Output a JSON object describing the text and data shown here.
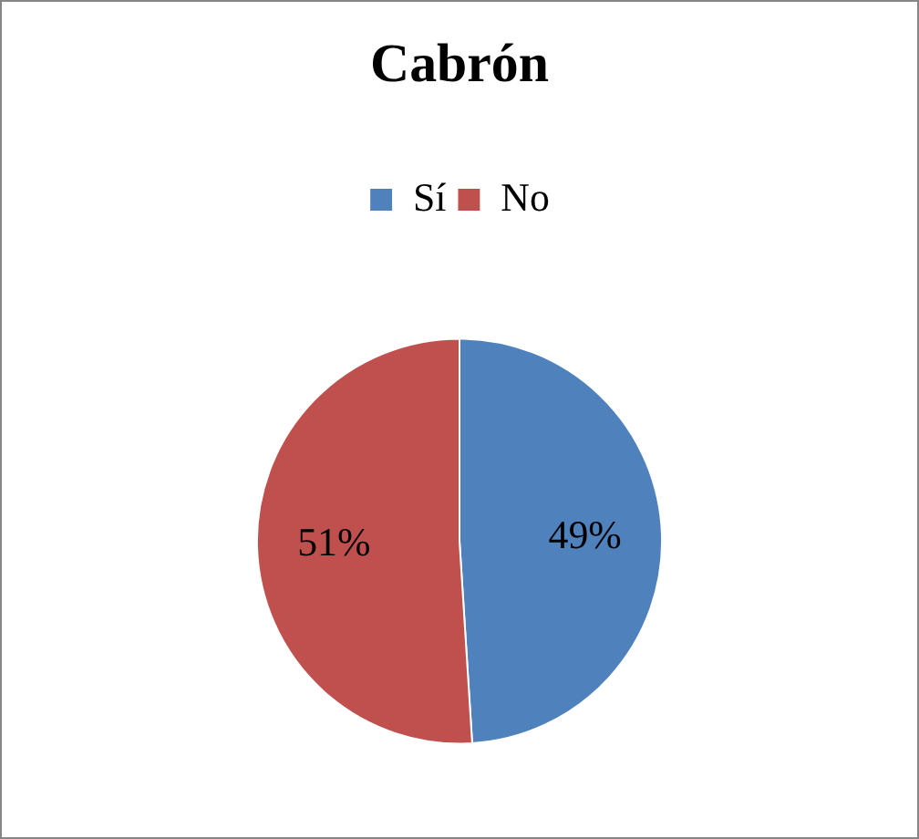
{
  "chart_data": {
    "type": "pie",
    "title": "Cabrón",
    "categories": [
      "Sí",
      "No"
    ],
    "values": [
      49,
      51
    ],
    "colors": [
      "#4f81bd",
      "#c0504d"
    ],
    "legend": "top",
    "value_labels": [
      "49%",
      "51%"
    ]
  }
}
